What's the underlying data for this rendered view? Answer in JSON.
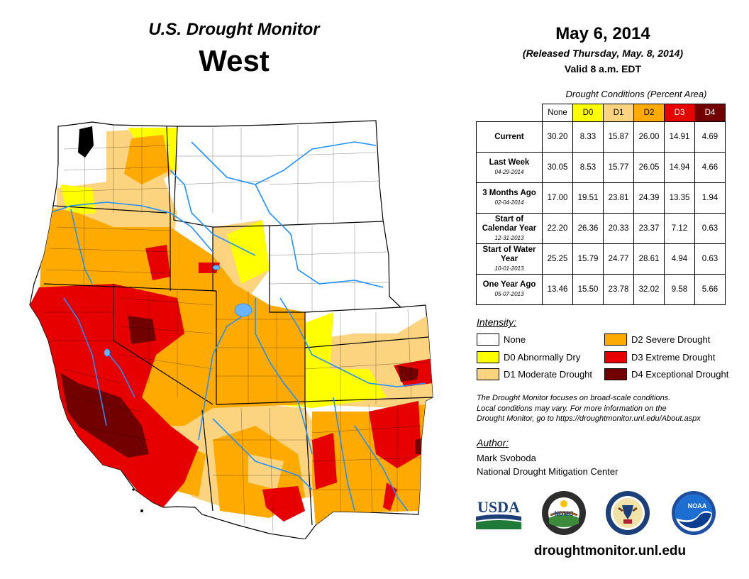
{
  "header": {
    "monitor_title": "U.S. Drought Monitor",
    "region": "West",
    "date": "May 6, 2014",
    "released": "(Released Thursday, May. 8, 2014)",
    "valid": "Valid 8 a.m. EDT"
  },
  "conditions": {
    "caption": "Drought Conditions (Percent Area)",
    "columns": [
      {
        "label": "None",
        "color": "#ffffff",
        "text_color": "#000000"
      },
      {
        "label": "D0",
        "color": "#ffff00",
        "text_color": "#000000"
      },
      {
        "label": "D1",
        "color": "#fcd37f",
        "text_color": "#000000"
      },
      {
        "label": "D2",
        "color": "#ffaa00",
        "text_color": "#000000"
      },
      {
        "label": "D3",
        "color": "#e60000",
        "text_color": "#ffffff"
      },
      {
        "label": "D4",
        "color": "#730000",
        "text_color": "#ffffff"
      }
    ],
    "rows": [
      {
        "label": "Current",
        "sub": "",
        "values": [
          "30.20",
          "8.33",
          "15.87",
          "26.00",
          "14.91",
          "4.69"
        ]
      },
      {
        "label": "Last Week",
        "sub": "04-29-2014",
        "values": [
          "30.05",
          "8.53",
          "15.77",
          "26.05",
          "14.94",
          "4.66"
        ]
      },
      {
        "label": "3 Months Ago",
        "sub": "02-04-2014",
        "values": [
          "17.00",
          "19.51",
          "23.81",
          "24.39",
          "13.35",
          "1.94"
        ]
      },
      {
        "label": "Start of Calendar Year",
        "sub": "12-31-2013",
        "values": [
          "22.20",
          "26.36",
          "20.33",
          "23.37",
          "7.12",
          "0.63"
        ]
      },
      {
        "label": "Start of Water Year",
        "sub": "10-01-2013",
        "values": [
          "25.25",
          "15.79",
          "24.77",
          "28.61",
          "4.94",
          "0.63"
        ]
      },
      {
        "label": "One Year Ago",
        "sub": "05-07-2013",
        "values": [
          "13.46",
          "15.50",
          "23.78",
          "32.02",
          "9.58",
          "5.66"
        ]
      }
    ]
  },
  "legend": {
    "heading": "Intensity:",
    "items": [
      {
        "label": "None",
        "color": "#ffffff"
      },
      {
        "label": "D0 Abnormally Dry",
        "color": "#ffff00"
      },
      {
        "label": "D1 Moderate Drought",
        "color": "#fcd37f"
      },
      {
        "label": "D2 Severe Drought",
        "color": "#ffaa00"
      },
      {
        "label": "D3 Extreme Drought",
        "color": "#e60000"
      },
      {
        "label": "D4 Exceptional Drought",
        "color": "#730000"
      }
    ]
  },
  "note": {
    "line1": "The Drought Monitor focuses on broad-scale conditions.",
    "line2": "Local conditions may vary. For more information on the",
    "line3": "Drought Monitor, go to https://droughtmonitor.unl.edu/About.aspx"
  },
  "author": {
    "heading": "Author:",
    "name": "Mark Svoboda",
    "org": "National Drought Mitigation Center"
  },
  "logos": {
    "usda": "USDA",
    "ndmc": "NDMC",
    "noaa": "NOAA"
  },
  "footer": {
    "url": "droughtmonitor.unl.edu"
  },
  "colors": {
    "river": "#1e90ff",
    "none": "#ffffff",
    "d0": "#ffff00",
    "d1": "#fcd37f",
    "d2": "#ffaa00",
    "d3": "#e60000",
    "d4": "#730000"
  }
}
